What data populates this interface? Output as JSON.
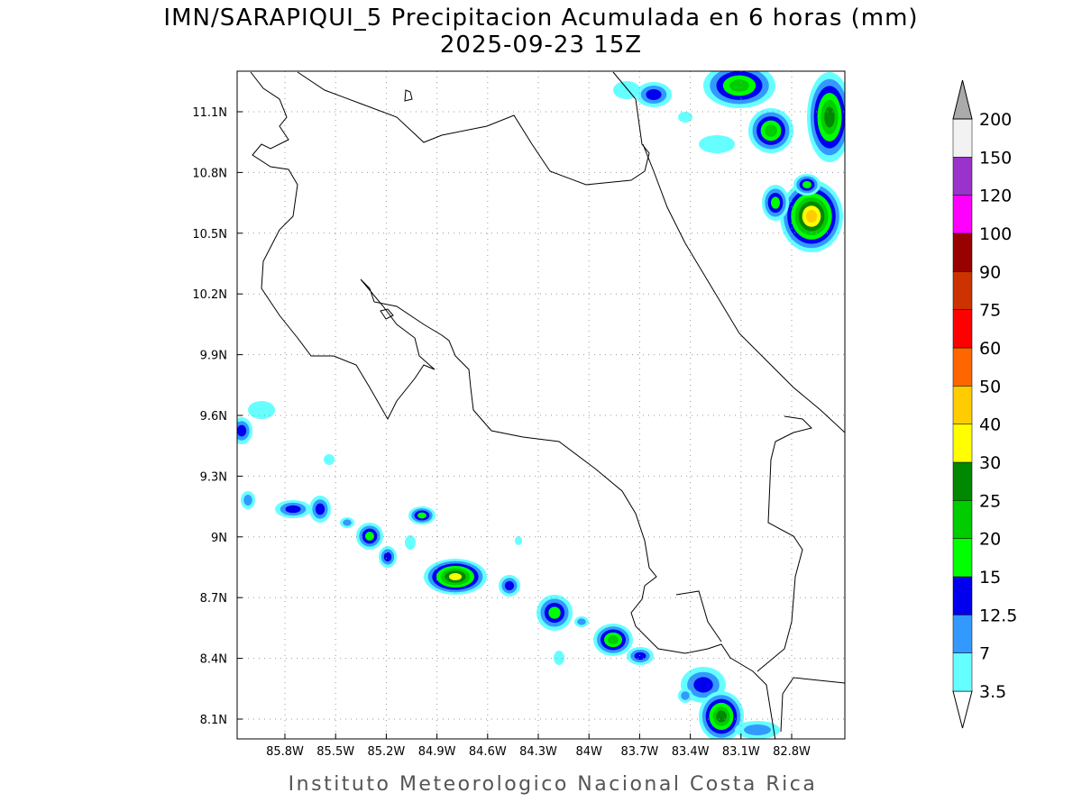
{
  "title": "IMN/SARAPIQUI_5 Precipitacion Acumulada en 6 horas (mm)",
  "subtitle": "2025-09-23 15Z",
  "map": {
    "lat_ticks": [
      "11.1N",
      "10.8N",
      "10.5N",
      "10.2N",
      "9.9N",
      "9.6N",
      "9.3N",
      "9N",
      "8.7N",
      "8.4N",
      "8.1N"
    ],
    "lon_ticks": [
      "85.8W",
      "85.5W",
      "85.2W",
      "84.9W",
      "84.6W",
      "84.3W",
      "84W",
      "83.7W",
      "83.4W",
      "83.1W",
      "82.8W"
    ]
  },
  "colorbar": {
    "levels": [
      3.5,
      7,
      12.5,
      15,
      20,
      25,
      30,
      40,
      50,
      60,
      75,
      90,
      100,
      120,
      150,
      200
    ],
    "colors": [
      "#66ffff",
      "#3399ff",
      "#0000ee",
      "#00ff00",
      "#00cc00",
      "#008800",
      "#ffff00",
      "#ffcc00",
      "#ff6600",
      "#ff0000",
      "#cc3300",
      "#990000",
      "#ff00ff",
      "#9933cc",
      "#f2f2f2"
    ],
    "under_color": "#ffffff",
    "over_color": "#aaaaaa"
  },
  "footer": "Instituto Meteorologico Nacional Costa Rica"
}
